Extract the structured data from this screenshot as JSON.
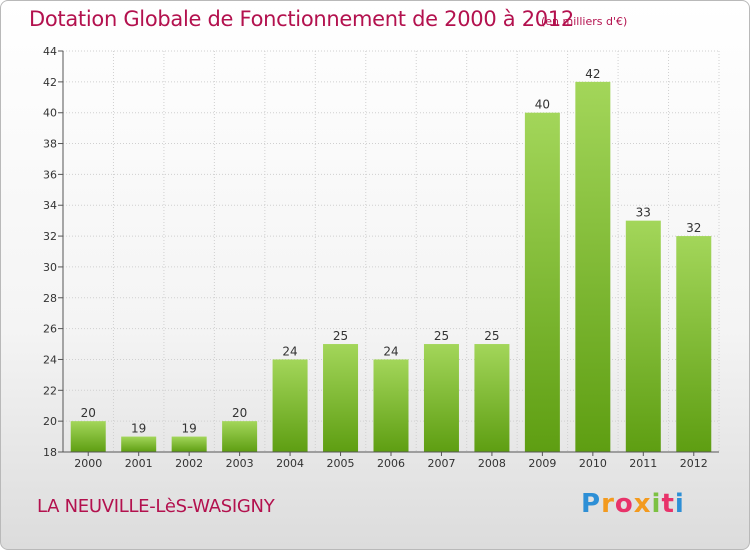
{
  "title": "Dotation Globale de Fonctionnement de 2000 à 2012",
  "unit": "(en milliers d'€)",
  "commune": "LA NEUVILLE-LèS-WASIGNY",
  "logo": {
    "letters": [
      "P",
      "r",
      "o",
      "x",
      "i",
      "t",
      "i"
    ]
  },
  "colors": {
    "title": "#b3114e",
    "bar_top": "#a3d65a",
    "bar_bottom": "#5e9e12",
    "grid": "#d0d0d0"
  },
  "chart_data": {
    "type": "bar",
    "categories": [
      "2000",
      "2001",
      "2002",
      "2003",
      "2004",
      "2005",
      "2006",
      "2007",
      "2008",
      "2009",
      "2010",
      "2011",
      "2012"
    ],
    "values": [
      20,
      19,
      19,
      20,
      24,
      25,
      24,
      25,
      25,
      40,
      42,
      33,
      32
    ],
    "data_labels": [
      "20",
      "19",
      "19",
      "20",
      "24",
      "25",
      "24",
      "25",
      "25",
      "40",
      "42",
      "33",
      "32"
    ],
    "yticks": [
      "18",
      "20",
      "22",
      "24",
      "26",
      "28",
      "30",
      "32",
      "34",
      "36",
      "38",
      "40",
      "42",
      "44"
    ],
    "ylim": [
      18,
      44
    ],
    "grid": true,
    "legend": "none"
  }
}
